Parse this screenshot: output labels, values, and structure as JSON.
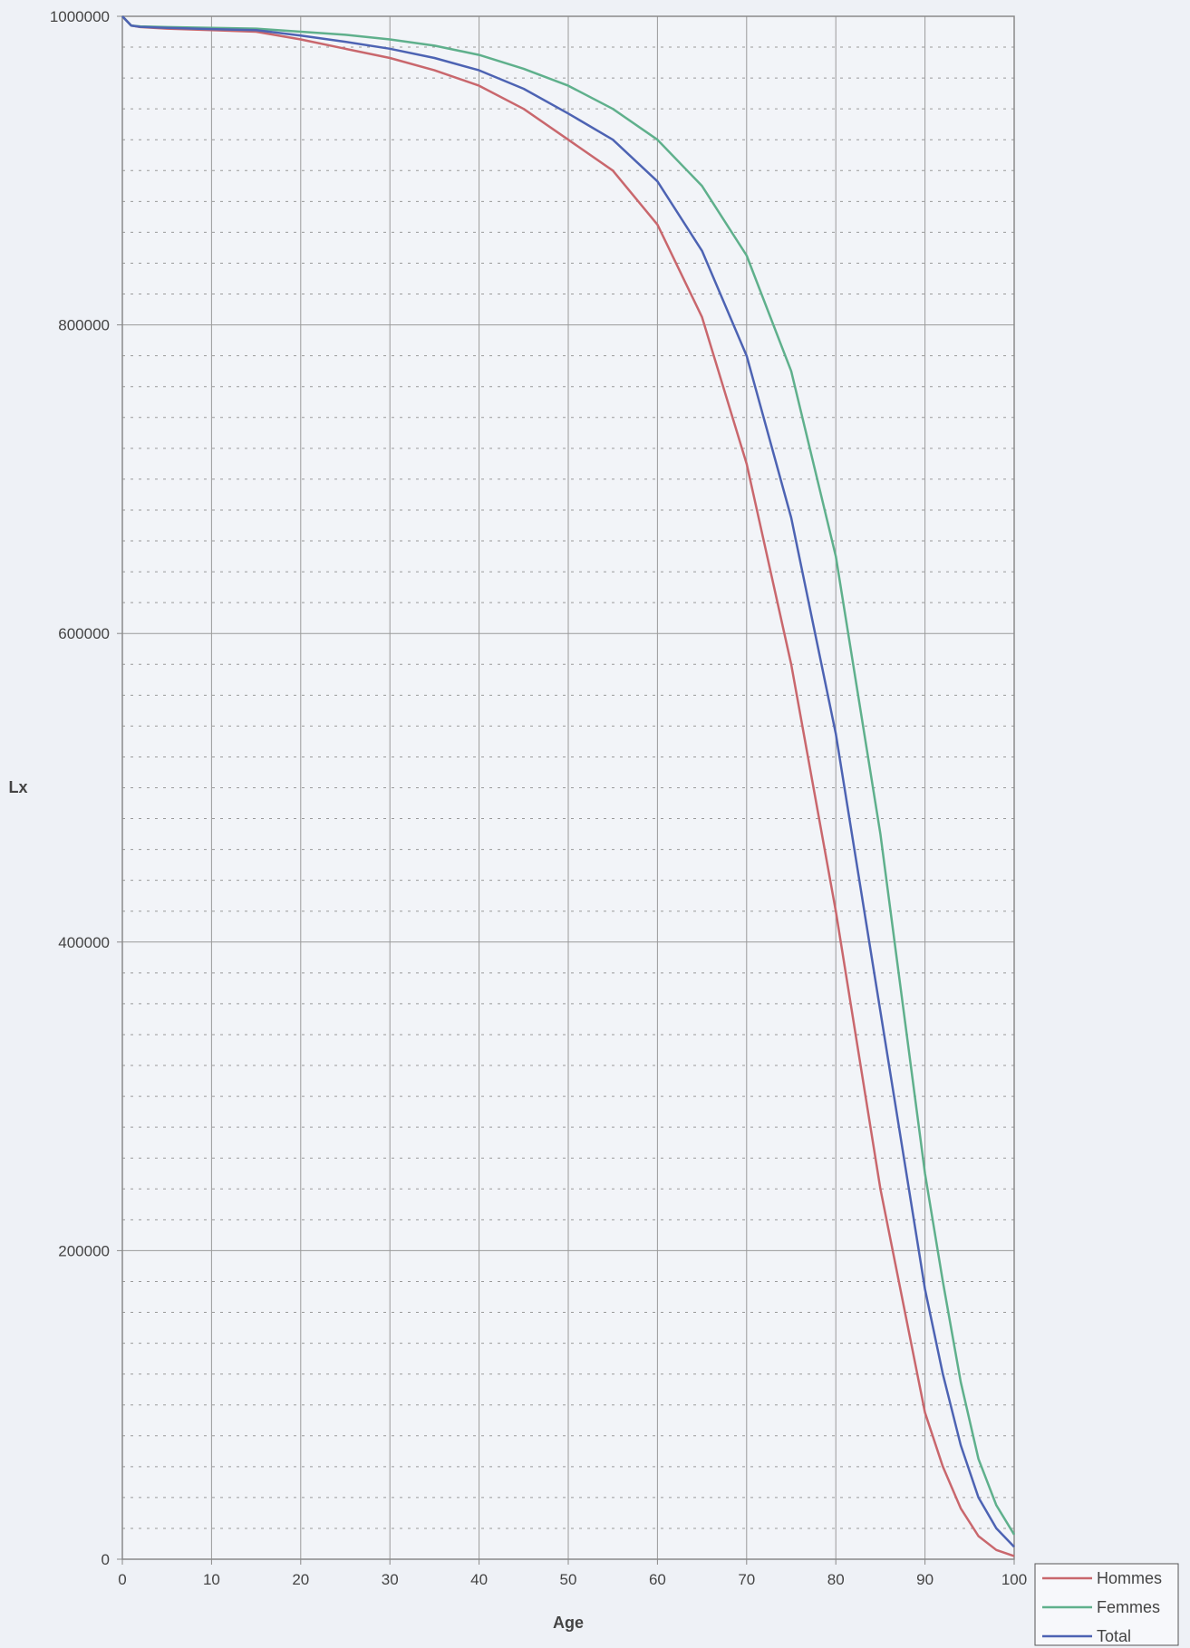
{
  "chart_data": {
    "type": "line",
    "title": "",
    "xlabel": "Age",
    "ylabel": "Lx",
    "xlim": [
      0,
      100
    ],
    "ylim": [
      0,
      1000000
    ],
    "x_ticks": [
      0,
      10,
      20,
      30,
      40,
      50,
      60,
      70,
      80,
      90,
      100
    ],
    "y_ticks": [
      0,
      200000,
      400000,
      600000,
      800000,
      1000000
    ],
    "x_tick_labels": [
      "0",
      "10",
      "20",
      "30",
      "40",
      "50",
      "60",
      "70",
      "80",
      "90",
      "100"
    ],
    "y_tick_labels": [
      "0",
      "200000",
      "400000",
      "600000",
      "800000",
      "1000000"
    ],
    "y_minor_step": 20000,
    "grid": true,
    "legend_position": "bottom-right",
    "legend_entries": [
      "Hommes",
      "Femmes",
      "Total"
    ],
    "series": [
      {
        "name": "Hommes",
        "color": "#c9676d",
        "x": [
          0,
          1,
          2,
          5,
          10,
          15,
          20,
          25,
          30,
          35,
          40,
          45,
          50,
          55,
          60,
          65,
          70,
          75,
          80,
          85,
          90,
          92,
          94,
          96,
          98,
          100
        ],
        "y": [
          1000000,
          994000,
          993000,
          992000,
          991000,
          990000,
          985000,
          979000,
          973000,
          965000,
          955000,
          940000,
          920000,
          900000,
          865000,
          805000,
          710000,
          580000,
          420000,
          240000,
          95000,
          60000,
          33000,
          15000,
          6000,
          2000
        ]
      },
      {
        "name": "Femmes",
        "color": "#5fb08c",
        "x": [
          0,
          1,
          2,
          5,
          10,
          15,
          20,
          25,
          30,
          35,
          40,
          45,
          50,
          55,
          60,
          65,
          70,
          75,
          80,
          85,
          90,
          92,
          94,
          96,
          98,
          100
        ],
        "y": [
          1000000,
          994000,
          993500,
          993000,
          992500,
          992000,
          990000,
          988000,
          985000,
          981000,
          975000,
          966000,
          955000,
          940000,
          920000,
          890000,
          845000,
          770000,
          650000,
          470000,
          250000,
          180000,
          115000,
          65000,
          35000,
          16000
        ]
      },
      {
        "name": "Total",
        "color": "#4d63b3",
        "x": [
          0,
          1,
          2,
          5,
          10,
          15,
          20,
          25,
          30,
          35,
          40,
          45,
          50,
          55,
          60,
          65,
          70,
          75,
          80,
          85,
          90,
          92,
          94,
          96,
          98,
          100
        ],
        "y": [
          1000000,
          994000,
          993200,
          992500,
          991700,
          991000,
          987500,
          983500,
          979000,
          973000,
          965000,
          953000,
          937000,
          920000,
          893000,
          848000,
          780000,
          675000,
          535000,
          355000,
          175000,
          120000,
          74000,
          40000,
          20000,
          8000
        ]
      }
    ]
  }
}
